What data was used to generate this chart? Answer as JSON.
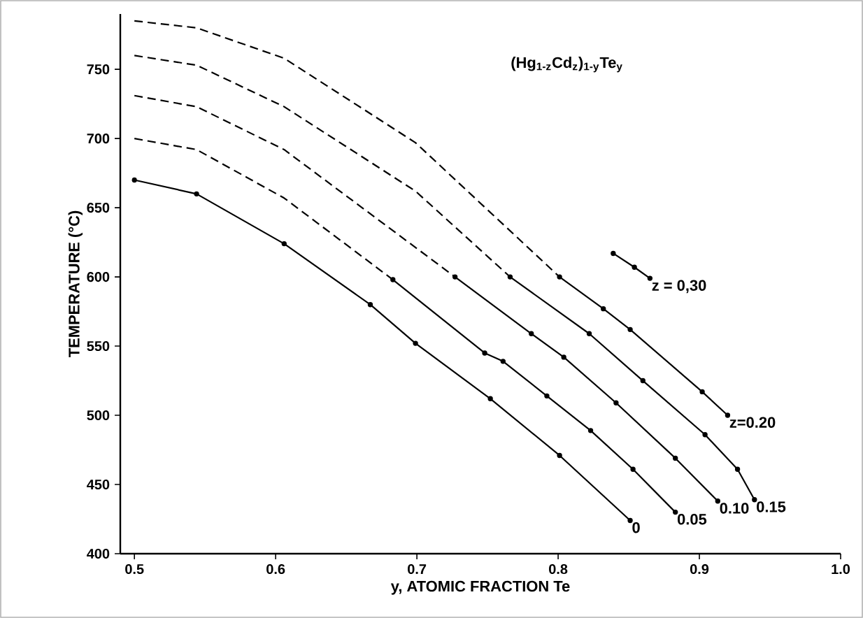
{
  "chart_data": {
    "type": "line",
    "xlabel": "y, ATOMIC FRACTION  Te",
    "ylabel": "TEMPERATURE (°C)",
    "annotations": [
      "(Hg$_{1-z}$Cd$_{z}$)$_{1-y}$Te$_{y}$"
    ],
    "xlim": [
      0.49,
      1.0
    ],
    "ylim": [
      400,
      790
    ],
    "xticks": [
      0.5,
      0.6,
      0.7,
      0.8,
      0.9,
      {
        "value": 1.0,
        "label": "1.0"
      }
    ],
    "yticks": [
      400,
      450,
      500,
      550,
      600,
      650,
      700,
      750
    ],
    "grid": false,
    "legend": false,
    "series": [
      {
        "name": "0",
        "color": "#000000",
        "line_style": "solid",
        "marker": "circle",
        "x": [
          0.5,
          0.544,
          0.606,
          0.667,
          0.699,
          0.752,
          0.801,
          0.851
        ],
        "values": [
          670,
          660,
          624,
          580,
          552,
          512,
          471,
          424
        ]
      },
      {
        "color": "#000000",
        "line_style": "dashed",
        "marker": "none",
        "x": [
          0.5,
          0.544,
          0.606,
          0.683
        ],
        "values": [
          700,
          692,
          657,
          598
        ]
      },
      {
        "name": "0.05",
        "color": "#000000",
        "line_style": "solid",
        "marker": "circle",
        "x": [
          0.683,
          0.748,
          0.761,
          0.792,
          0.823,
          0.853,
          0.883
        ],
        "values": [
          598,
          545,
          539,
          514,
          489,
          461,
          430
        ]
      },
      {
        "color": "#000000",
        "line_style": "dashed",
        "marker": "none",
        "x": [
          0.5,
          0.544,
          0.606,
          0.727
        ],
        "values": [
          731,
          723,
          692,
          600
        ]
      },
      {
        "name": "0.10",
        "color": "#000000",
        "line_style": "solid",
        "marker": "circle",
        "x": [
          0.727,
          0.781,
          0.804,
          0.841,
          0.883,
          0.913
        ],
        "values": [
          600,
          559,
          542,
          509,
          469,
          438
        ]
      },
      {
        "color": "#000000",
        "line_style": "dashed",
        "marker": "none",
        "x": [
          0.5,
          0.544,
          0.606,
          0.699,
          0.766
        ],
        "values": [
          760,
          753,
          723,
          662,
          600
        ]
      },
      {
        "name": "0.15",
        "color": "#000000",
        "line_style": "solid",
        "marker": "circle",
        "x": [
          0.766,
          0.822,
          0.86,
          0.904,
          0.927,
          0.939
        ],
        "values": [
          600,
          559,
          525,
          486,
          461,
          439
        ]
      },
      {
        "color": "#000000",
        "line_style": "dashed",
        "marker": "none",
        "x": [
          0.5,
          0.544,
          0.606,
          0.699,
          0.801
        ],
        "values": [
          785,
          780,
          758,
          697,
          600
        ]
      },
      {
        "name": "z=0.20",
        "color": "#000000",
        "line_style": "solid",
        "marker": "circle",
        "x": [
          0.801,
          0.832,
          0.851,
          0.902,
          0.92
        ],
        "values": [
          600,
          577,
          562,
          517,
          500
        ]
      },
      {
        "name": "z = 0,30",
        "color": "#000000",
        "line_style": "solid",
        "marker": "circle",
        "x": [
          0.839,
          0.854,
          0.865
        ],
        "values": [
          617,
          607,
          599
        ]
      }
    ]
  }
}
